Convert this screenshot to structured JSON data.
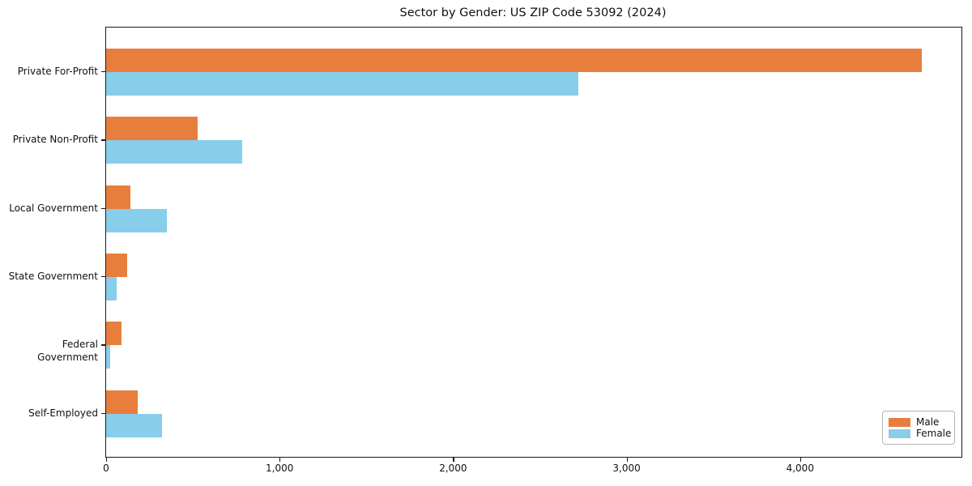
{
  "chart_data": {
    "type": "bar",
    "orientation": "horizontal",
    "title": "Sector by Gender: US ZIP Code 53092 (2024)",
    "categories": [
      "Private For-Profit",
      "Private Non-Profit",
      "Local Government",
      "State Government",
      "Federal Government",
      "Self-Employed"
    ],
    "series": [
      {
        "name": "Male",
        "color": "#e87e3e",
        "values": [
          4700,
          525,
          140,
          120,
          90,
          180
        ]
      },
      {
        "name": "Female",
        "color": "#87ceeb",
        "values": [
          2720,
          785,
          350,
          60,
          25,
          320
        ]
      }
    ],
    "xlabel": "",
    "ylabel": "",
    "xlim": [
      0,
      4930
    ],
    "xticks": [
      0,
      1000,
      2000,
      3000,
      4000
    ],
    "xtick_labels": [
      "0",
      "1,000",
      "2,000",
      "3,000",
      "4,000"
    ],
    "grid": false,
    "legend_position": "lower right",
    "legend_labels": [
      "Male",
      "Female"
    ],
    "axis_color": "#1a1a1a",
    "background_color": "#ffffff"
  }
}
